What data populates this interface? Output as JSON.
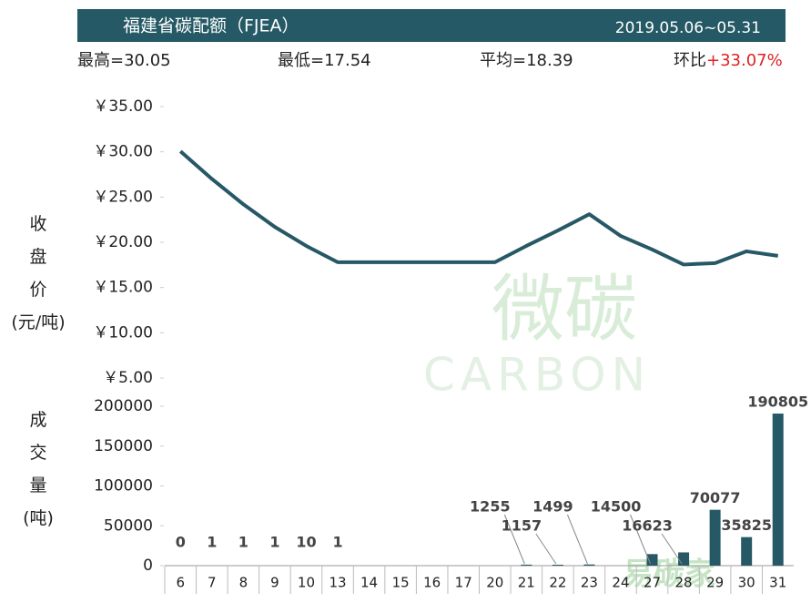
{
  "header": {
    "title": "福建省碳配额（FJEA）",
    "date_range": "2019.05.06~05.31",
    "stats": [
      {
        "label": "最高=30.05"
      },
      {
        "label": "最低=17.54"
      },
      {
        "label": "平均=18.39"
      },
      {
        "label": "环比",
        "change": "+33.07%"
      }
    ]
  },
  "watermark": [
    "微碳",
    "CARBON",
    "易碳家"
  ],
  "chart_data": [
    {
      "type": "line",
      "y_label": "收盘价(元/吨)",
      "color": "#275866",
      "categories": [
        "6",
        "7",
        "8",
        "9",
        "10",
        "13",
        "14",
        "15",
        "16",
        "17",
        "20",
        "21",
        "22",
        "23",
        "24",
        "27",
        "28",
        "29",
        "30",
        "31"
      ],
      "values": [
        30.05,
        27.0,
        24.2,
        21.7,
        19.6,
        17.8,
        17.8,
        17.8,
        17.8,
        17.8,
        17.8,
        19.6,
        21.3,
        23.1,
        20.7,
        19.2,
        17.54,
        17.7,
        19.0,
        18.5
      ],
      "ylim": [
        5,
        35
      ],
      "yticks": [
        {
          "value": 5,
          "label": "￥5.00"
        },
        {
          "value": 10,
          "label": "￥10.00"
        },
        {
          "value": 15,
          "label": "￥15.00"
        },
        {
          "value": 20,
          "label": "￥20.00"
        },
        {
          "value": 25,
          "label": "￥25.00"
        },
        {
          "value": 30,
          "label": "￥30.00"
        },
        {
          "value": 35,
          "label": "￥35.00"
        }
      ]
    },
    {
      "type": "bar",
      "y_label": "成交量(吨)",
      "color": "#275866",
      "categories": [
        "6",
        "7",
        "8",
        "9",
        "10",
        "13",
        "14",
        "15",
        "16",
        "17",
        "20",
        "21",
        "22",
        "23",
        "24",
        "27",
        "28",
        "29",
        "30",
        "31"
      ],
      "values": [
        0,
        1,
        1,
        1,
        10,
        1,
        null,
        null,
        null,
        null,
        null,
        1255,
        1157,
        1499,
        null,
        14500,
        16623,
        70077,
        35825,
        190805
      ],
      "ylim": [
        0,
        200000
      ],
      "yticks": [
        0,
        50000,
        100000,
        150000,
        200000
      ]
    }
  ]
}
